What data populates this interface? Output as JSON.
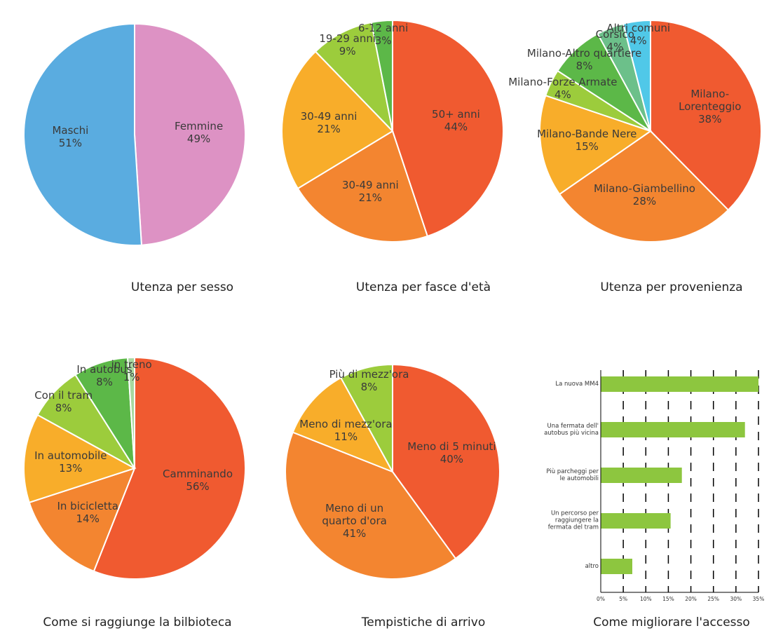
{
  "chart_data": [
    {
      "type": "pie",
      "title": "Utenza per sesso",
      "categories": [
        "Femmine",
        "Maschi"
      ],
      "values": [
        49,
        51
      ],
      "value_labels": [
        "49%",
        "51%"
      ],
      "colors": [
        "#dd92c4",
        "#5aace0"
      ]
    },
    {
      "type": "pie",
      "title": "Utenza per fasce d'età",
      "categories": [
        "50+ anni",
        "30-49 anni",
        "30-49 anni",
        "19-29 anni",
        "6-12 anni"
      ],
      "values": [
        44,
        21,
        21,
        9,
        3
      ],
      "value_labels": [
        "44%",
        "21%",
        "21%",
        "9%",
        "3%"
      ],
      "colors": [
        "#f05a30",
        "#f38530",
        "#f8ad2a",
        "#9ccc3c",
        "#5cb848"
      ]
    },
    {
      "type": "pie",
      "title": "Utenza per provenienza",
      "categories": [
        "Milano-Lorenteggio",
        "Milano-Giambellino",
        "Milano-Bande Nere",
        "Milano-Forze Armate",
        "Milano-Altro quartiere",
        "Corsico",
        "Altri comuni"
      ],
      "values": [
        38,
        28,
        15,
        4,
        8,
        4,
        4
      ],
      "value_labels": [
        "38%",
        "28%",
        "15%",
        "4%",
        "8%",
        "4%",
        "4%"
      ],
      "colors": [
        "#f05a30",
        "#f38530",
        "#f8ad2a",
        "#9ccc3c",
        "#5cb848",
        "#6cc08a",
        "#50c8e8"
      ]
    },
    {
      "type": "pie",
      "title": "Come si raggiunge la bilbioteca",
      "categories": [
        "Camminando",
        "In bicicletta",
        "In automobile",
        "Con il tram",
        "In autobus",
        "in treno"
      ],
      "values": [
        56,
        14,
        13,
        8,
        8,
        1
      ],
      "value_labels": [
        "56%",
        "14%",
        "13%",
        "8%",
        "8%",
        "1%"
      ],
      "colors": [
        "#f05a30",
        "#f38530",
        "#f8ad2a",
        "#9ccc3c",
        "#5cb848",
        "#a8d8a0"
      ]
    },
    {
      "type": "pie",
      "title": "Tempistiche di arrivo",
      "categories": [
        "Meno di 5 minuti",
        "Meno di un\nquarto d'ora",
        "Meno di mezz'ora",
        "Più di mezz'ora"
      ],
      "values": [
        40,
        41,
        11,
        8
      ],
      "value_labels": [
        "40%",
        "41%",
        "11%",
        "8%"
      ],
      "colors": [
        "#f05a30",
        "#f38530",
        "#f8ad2a",
        "#9ccc3c"
      ]
    },
    {
      "type": "bar",
      "orientation": "horizontal",
      "title": "Come migliorare l'accesso",
      "categories": [
        "La nuova MM4",
        "Una fermata dell'\nautobus più vicina",
        "Più parcheggi per\nle automobili",
        "Un percorso per\nraggiungere la\nfermata del tram",
        "altro"
      ],
      "values": [
        35,
        32,
        18,
        15.5,
        7
      ],
      "color": "#8dc63f",
      "xlim": [
        0,
        35
      ],
      "xticks": [
        {
          "value": 0,
          "label": "0%"
        },
        {
          "value": 5,
          "label": "5%"
        },
        {
          "value": 10,
          "label": "10%"
        },
        {
          "value": 15,
          "label": "15%"
        },
        {
          "value": 20,
          "label": "20%"
        },
        {
          "value": 25,
          "label": "25%"
        },
        {
          "value": 30,
          "label": "30%"
        },
        {
          "value": 35,
          "label": "35%"
        }
      ],
      "grid": true
    }
  ]
}
